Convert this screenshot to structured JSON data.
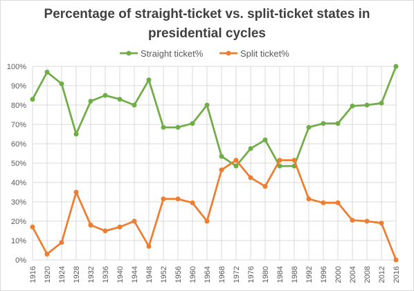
{
  "chart_data": {
    "type": "line",
    "title": "Percentage of straight-ticket  vs. split-ticket states in presidential  cycles",
    "xlabel": "",
    "ylabel": "",
    "ylim": [
      0,
      100
    ],
    "y_ticks": [
      "0%",
      "10%",
      "20%",
      "30%",
      "40%",
      "50%",
      "60%",
      "70%",
      "80%",
      "90%",
      "100%"
    ],
    "x": [
      "1916",
      "1920",
      "1924",
      "1928",
      "1932",
      "1936",
      "1940",
      "1944",
      "1948",
      "1952",
      "1956",
      "1960",
      "1964",
      "1968",
      "1972",
      "1976",
      "1980",
      "1984",
      "1988",
      "1992",
      "1996",
      "2000",
      "2004",
      "2008",
      "2012",
      "2016"
    ],
    "grid": true,
    "legend": "top",
    "series": [
      {
        "name": "Straight ticket%",
        "color": "#70ad47",
        "values": [
          83,
          97,
          91,
          65,
          82,
          85,
          83,
          80,
          93,
          68.5,
          68.5,
          70.5,
          80,
          53.5,
          48.5,
          57.5,
          62,
          48.5,
          48.5,
          68.5,
          70.5,
          70.5,
          79.5,
          80,
          81,
          100
        ]
      },
      {
        "name": "Split ticket%",
        "color": "#ed7d31",
        "values": [
          17,
          3,
          9,
          35,
          18,
          15,
          17,
          20,
          7,
          31.5,
          31.5,
          29.5,
          20,
          46.5,
          51.5,
          42.5,
          38,
          51.5,
          51.5,
          31.5,
          29.5,
          29.5,
          20.5,
          20,
          19,
          0
        ]
      }
    ]
  }
}
